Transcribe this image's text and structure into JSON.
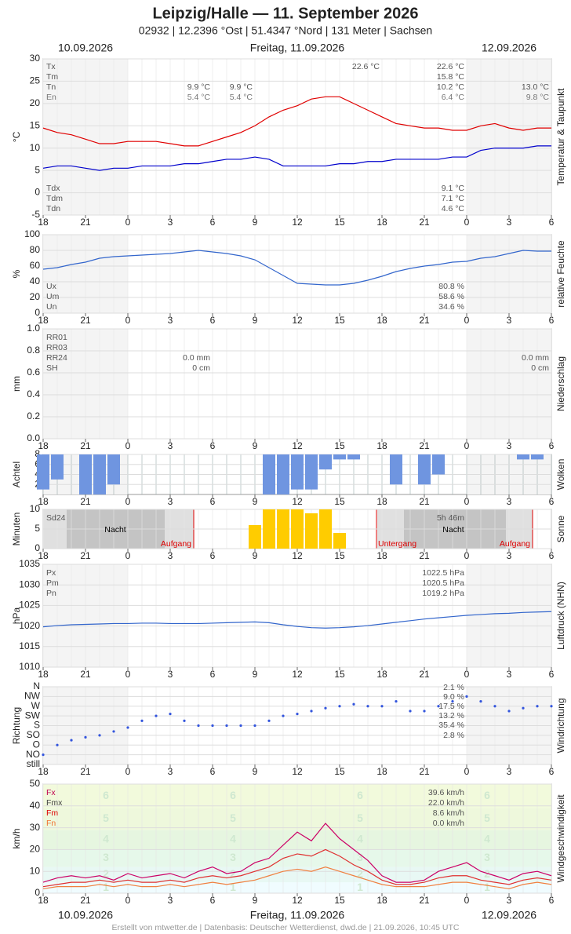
{
  "chart_data": {
    "title": "Leipzig/Halle  —  11. September 2026",
    "subtitle": "02932  |  12.2396 °Ost  |  51.4347 °Nord  |  131 Meter  |  Sachsen",
    "dates": [
      "10.09.2026",
      "Freitag, 11.09.2026",
      "12.09.2026"
    ],
    "footer": "Erstellt von mtwetter.de | Datenbasis: Deutscher Wetterdienst, dwd.de | 21.09.2026, 10:45 UTC",
    "x": [
      0,
      1,
      2,
      3,
      4,
      5,
      6,
      7,
      8,
      9,
      10,
      11,
      12,
      13,
      14,
      15,
      16,
      17,
      18,
      19,
      20,
      21,
      22,
      23,
      24,
      25,
      26,
      27,
      28,
      29,
      30,
      31,
      32,
      33,
      34,
      35,
      36
    ],
    "xlim": [
      0,
      36
    ],
    "xticks": [
      {
        "value": 0,
        "label": "18"
      },
      {
        "value": 3,
        "label": "21"
      },
      {
        "value": 6,
        "label": "0"
      },
      {
        "value": 9,
        "label": "3"
      },
      {
        "value": 12,
        "label": "6"
      },
      {
        "value": 15,
        "label": "9"
      },
      {
        "value": 18,
        "label": "12"
      },
      {
        "value": 21,
        "label": "15"
      },
      {
        "value": 24,
        "label": "18"
      },
      {
        "value": 27,
        "label": "21"
      },
      {
        "value": 30,
        "label": "0"
      },
      {
        "value": 33,
        "label": "3"
      },
      {
        "value": 36,
        "label": "6"
      }
    ],
    "panels": [
      {
        "type": "line",
        "ylabel": "°C",
        "side_label": "Temperatur & Taupunkt",
        "ylim": [
          -5,
          30
        ],
        "yticks": [
          -5,
          0,
          5,
          10,
          15,
          20,
          25,
          30
        ],
        "series": [
          {
            "color": "#e00000",
            "values": [
              14.5,
              13.5,
              13,
              12,
              11,
              11,
              11.5,
              11.5,
              11.5,
              11,
              10.5,
              10.5,
              11.5,
              12.5,
              13.5,
              15,
              17,
              18.5,
              19.5,
              21,
              21.5,
              21.5,
              20,
              18.5,
              17,
              15.5,
              15,
              14.5,
              14.5,
              14,
              14,
              15,
              15.5,
              14.5,
              14,
              14.5,
              14.5
            ]
          },
          {
            "color": "#0000cc",
            "values": [
              5.5,
              6,
              6,
              5.5,
              5,
              5.5,
              5.5,
              6,
              6,
              6,
              6.5,
              6.5,
              7,
              7.5,
              7.5,
              8,
              7.5,
              6,
              6,
              6,
              6,
              6.5,
              6.5,
              7,
              7,
              7.5,
              7.5,
              7.5,
              7.5,
              8,
              8,
              9.5,
              10,
              10,
              10,
              10.5,
              10.5
            ]
          }
        ],
        "annotations": [
          "Tx",
          "Tm",
          "Tn",
          "En",
          "22.6 °C",
          "22.6 °C",
          "15.8 °C",
          "10.2 °C",
          "6.4 °C",
          "9.9 °C",
          "9.9 °C",
          "5.4 °C",
          "5.4 °C",
          "13.0 °C",
          "9.8 °C",
          "Tdx",
          "Tdm",
          "Tdn",
          "9.1 °C",
          "7.1 °C",
          "4.6 °C"
        ]
      },
      {
        "type": "line",
        "ylabel": "%",
        "side_label": "relative Feuchte",
        "ylim": [
          0,
          100
        ],
        "yticks": [
          0,
          20,
          40,
          60,
          80,
          100
        ],
        "series": [
          {
            "color": "#3366cc",
            "values": [
              56,
              58,
              62,
              65,
              70,
              72,
              73,
              74,
              75,
              76,
              78,
              80,
              78,
              76,
              73,
              68,
              58,
              48,
              38,
              37,
              36,
              36,
              38,
              42,
              47,
              53,
              57,
              60,
              62,
              65,
              66,
              70,
              72,
              76,
              80,
              79,
              79
            ]
          }
        ],
        "annotations": [
          "Ux",
          "Um",
          "Un",
          "80.8 %",
          "58.6 %",
          "34.6 %"
        ]
      },
      {
        "type": "line",
        "ylabel": "mm",
        "side_label": "Niederschlag",
        "ylim": [
          0,
          1
        ],
        "yticks": [
          {
            "value": 0,
            "label": "0.0"
          },
          0.2,
          0.4,
          0.6,
          0.8,
          {
            "value": 1,
            "label": "1.0"
          }
        ],
        "series": [],
        "annotations": [
          "RR01",
          "RR03",
          "RR24",
          "SH",
          "0.0 mm",
          "0 cm",
          "0.0 mm",
          "0 cm"
        ]
      },
      {
        "type": "bar",
        "ylabel": "Achtel",
        "side_label": "Wolken",
        "ylim": [
          0,
          8
        ],
        "yticks": [
          2,
          4,
          6,
          8
        ],
        "from_top": true,
        "series": [
          {
            "color": "#6f95e0",
            "values": [
              7,
              5,
              0,
              8,
              8,
              6,
              0,
              0,
              0,
              0,
              0,
              0,
              0,
              0,
              0,
              0,
              8,
              8,
              7,
              7,
              3,
              1,
              1,
              0,
              0,
              6,
              0,
              6,
              4,
              0,
              0,
              0,
              0,
              0,
              1,
              1,
              0
            ]
          }
        ],
        "annotations": []
      },
      {
        "type": "bar",
        "ylabel": "Minuten",
        "side_label": "Sonne",
        "ylim": [
          0,
          10
        ],
        "yticks": [
          0,
          5,
          10
        ],
        "series": [
          {
            "color": "#ffcc00",
            "values": [
              0,
              0,
              0,
              0,
              0,
              0,
              0,
              0,
              0,
              0,
              0,
              0,
              0,
              0,
              0,
              6,
              10,
              10,
              10,
              9,
              10,
              4,
              0,
              0,
              0,
              0,
              0,
              0,
              0,
              0,
              0,
              0,
              0,
              0,
              0,
              0,
              0
            ]
          }
        ],
        "annotations": [
          "Sd24",
          "5h 46m",
          "Nacht",
          "Nacht",
          "Aufgang",
          "Untergang",
          "Aufgang"
        ]
      },
      {
        "type": "line",
        "ylabel": "hPa",
        "side_label": "Luftdruck (NHN)",
        "ylim": [
          1010,
          1035
        ],
        "yticks": [
          1010,
          1015,
          1020,
          1025,
          1030,
          1035
        ],
        "series": [
          {
            "color": "#3366cc",
            "values": [
              1019.8,
              1020.1,
              1020.3,
              1020.4,
              1020.5,
              1020.6,
              1020.6,
              1020.7,
              1020.7,
              1020.6,
              1020.6,
              1020.6,
              1020.7,
              1020.8,
              1020.9,
              1021,
              1020.8,
              1020.3,
              1019.9,
              1019.6,
              1019.5,
              1019.6,
              1019.8,
              1020.1,
              1020.5,
              1020.9,
              1021.3,
              1021.7,
              1022,
              1022.3,
              1022.6,
              1022.8,
              1023,
              1023.1,
              1023.3,
              1023.4,
              1023.5
            ]
          }
        ],
        "annotations": [
          "Px",
          "Pm",
          "Pn",
          "1022.5 hPa",
          "1020.5 hPa",
          "1019.2 hPa"
        ]
      },
      {
        "type": "scatter",
        "ylabel": "Richtung",
        "side_label": "Windrichtung",
        "ylim": [
          0,
          8
        ],
        "yticks": [
          {
            "value": 0,
            "label": "still"
          },
          {
            "value": 1,
            "label": "NO"
          },
          {
            "value": 2,
            "label": "O"
          },
          {
            "value": 3,
            "label": "SO"
          },
          {
            "value": 4,
            "label": "S"
          },
          {
            "value": 5,
            "label": "SW"
          },
          {
            "value": 6,
            "label": "W"
          },
          {
            "value": 7,
            "label": "NW"
          },
          {
            "value": 8,
            "label": "N"
          }
        ],
        "series": [
          {
            "color": "#3355dd",
            "values": [
              1,
              2,
              2.5,
              2.8,
              3,
              3.4,
              3.8,
              4.5,
              5,
              5.2,
              4.5,
              4,
              4,
              4,
              4,
              4,
              4.5,
              5,
              5.2,
              5.5,
              5.8,
              6,
              6.2,
              6,
              6,
              6.5,
              5.5,
              5.5,
              6,
              6.5,
              7,
              6.5,
              6,
              5.5,
              5.8,
              6,
              6
            ]
          }
        ],
        "annotations": [
          "2.1 %",
          "9.0 %",
          "17.5 %",
          "13.2 %",
          "35.4 %",
          "2.8 %"
        ]
      },
      {
        "type": "line",
        "ylabel": "km/h",
        "side_label": "Windgeschwindigkeit",
        "ylim": [
          0,
          50
        ],
        "yticks": [
          0,
          10,
          20,
          30,
          40,
          50
        ],
        "beaufort": [
          1,
          2,
          3,
          4,
          5,
          6
        ],
        "series": [
          {
            "color": "#cc0066",
            "values": [
              5,
              7,
              8,
              7,
              8,
              6,
              9,
              7,
              8,
              9,
              7,
              10,
              12,
              9,
              10,
              14,
              16,
              22,
              28,
              24,
              32,
              25,
              20,
              15,
              8,
              5,
              5,
              6,
              10,
              12,
              14,
              10,
              8,
              6,
              9,
              10,
              8
            ]
          },
          {
            "color": "#e03030",
            "values": [
              3,
              4,
              5,
              5,
              6,
              5,
              6,
              5,
              5,
              6,
              5,
              7,
              8,
              7,
              8,
              10,
              12,
              16,
              18,
              17,
              20,
              17,
              13,
              10,
              6,
              4,
              4,
              5,
              7,
              8,
              8,
              6,
              5,
              4,
              6,
              7,
              6
            ]
          },
          {
            "color": "#f08040",
            "values": [
              2,
              3,
              3,
              3,
              4,
              3,
              4,
              3,
              3,
              4,
              3,
              4,
              5,
              4,
              5,
              6,
              8,
              10,
              11,
              10,
              12,
              10,
              8,
              6,
              4,
              3,
              3,
              3,
              4,
              5,
              5,
              4,
              3,
              2,
              4,
              5,
              4
            ]
          }
        ],
        "annotations": [
          "Fx",
          "Fmx",
          "Fm",
          "Fn",
          "39.6 km/h",
          "22.0 km/h",
          "8.6 km/h",
          "0.0 km/h"
        ]
      }
    ]
  }
}
